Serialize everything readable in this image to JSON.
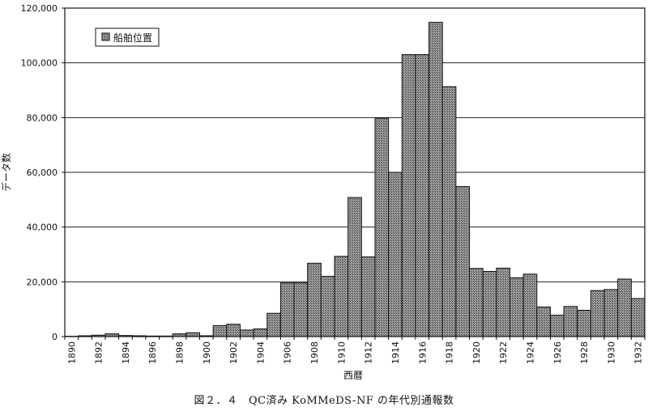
{
  "chart_data": {
    "type": "bar",
    "ylabel": "データ数",
    "xlabel": "西暦",
    "legend": {
      "label": "船舶位置",
      "placement": "top-left"
    },
    "ylim": [
      0,
      120000
    ],
    "y_ticks": [
      "0",
      "20,000",
      "40,000",
      "60,000",
      "80,000",
      "100,000",
      "120,000"
    ],
    "grid": true,
    "series": [
      {
        "name": "船舶位置",
        "x": [
          1890,
          1891,
          1892,
          1893,
          1894,
          1895,
          1896,
          1897,
          1898,
          1899,
          1900,
          1901,
          1902,
          1903,
          1904,
          1905,
          1906,
          1907,
          1908,
          1909,
          1910,
          1911,
          1912,
          1913,
          1914,
          1915,
          1916,
          1917,
          1918,
          1919,
          1920,
          1921,
          1922,
          1923,
          1924,
          1925,
          1926,
          1927,
          1928,
          1929,
          1930,
          1931,
          1932
        ],
        "values": [
          100,
          300,
          500,
          1000,
          400,
          300,
          200,
          200,
          1000,
          1400,
          300,
          4000,
          4500,
          2400,
          2800,
          8500,
          19600,
          19600,
          26800,
          22000,
          29300,
          50800,
          29100,
          79800,
          60000,
          103000,
          103000,
          114800,
          91300,
          54800,
          24900,
          23800,
          25000,
          21500,
          22800,
          10800,
          7800,
          11000,
          9600,
          16800,
          17200,
          21000,
          13900
        ]
      }
    ],
    "x_ticks": [
      "1890",
      "1892",
      "1894",
      "1896",
      "1898",
      "1900",
      "1902",
      "1904",
      "1906",
      "1908",
      "1910",
      "1912",
      "1914",
      "1916",
      "1918",
      "1920",
      "1922",
      "1924",
      "1926",
      "1928",
      "1930",
      "1932"
    ]
  },
  "caption": "図２．４　QC済み KoMMeDS-NF の年代別通報数",
  "colors": {
    "bar_fill": "#8f8f8f",
    "bar_stroke": "#111111",
    "grid": "#222222",
    "background": "#ffffff"
  }
}
